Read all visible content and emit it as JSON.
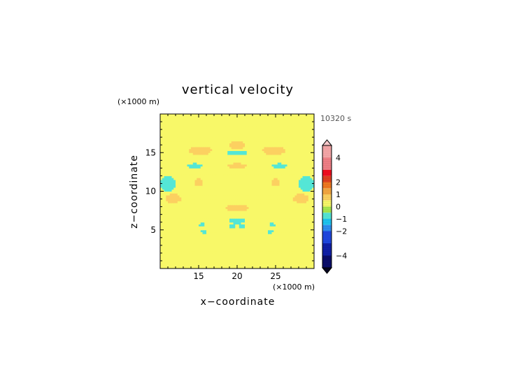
{
  "chart_data": {
    "type": "heatmap",
    "title": "vertical velocity",
    "xlabel": "x−coordinate",
    "ylabel": "z−coordinate",
    "x_unit": "(×1000 m)",
    "y_unit": "(×1000 m)",
    "time_label": "10320 s",
    "xlim": [
      10,
      30
    ],
    "ylim": [
      0,
      20
    ],
    "x_ticks": [
      15,
      20,
      25
    ],
    "y_ticks": [
      5,
      10,
      15
    ],
    "background_level": 0.25,
    "features": [
      {
        "x": 20.0,
        "z": 16.0,
        "rx": 1.0,
        "rz": 0.5,
        "value": 0.7
      },
      {
        "x": 20.0,
        "z": 15.0,
        "rx": 1.3,
        "rz": 0.35,
        "value": -0.8
      },
      {
        "x": 20.0,
        "z": 13.3,
        "rx": 1.2,
        "rz": 0.35,
        "value": 0.7
      },
      {
        "x": 15.2,
        "z": 15.3,
        "rx": 1.5,
        "rz": 0.55,
        "value": 0.8
      },
      {
        "x": 24.8,
        "z": 15.3,
        "rx": 1.5,
        "rz": 0.55,
        "value": 0.8
      },
      {
        "x": 14.5,
        "z": 13.3,
        "rx": 1.0,
        "rz": 0.35,
        "value": -0.8
      },
      {
        "x": 25.5,
        "z": 13.3,
        "rx": 1.0,
        "rz": 0.35,
        "value": -0.8
      },
      {
        "x": 15.0,
        "z": 11.2,
        "rx": 0.6,
        "rz": 0.45,
        "value": 0.7
      },
      {
        "x": 25.0,
        "z": 11.2,
        "rx": 0.6,
        "rz": 0.45,
        "value": 0.7
      },
      {
        "x": 11.0,
        "z": 11.0,
        "rx": 1.0,
        "rz": 1.0,
        "value": -0.8
      },
      {
        "x": 29.0,
        "z": 11.0,
        "rx": 1.0,
        "rz": 1.0,
        "value": -0.8
      },
      {
        "x": 11.7,
        "z": 9.1,
        "rx": 1.0,
        "rz": 0.6,
        "value": 0.8
      },
      {
        "x": 28.3,
        "z": 9.1,
        "rx": 1.0,
        "rz": 0.6,
        "value": 0.8
      },
      {
        "x": 20.0,
        "z": 7.9,
        "rx": 1.5,
        "rz": 0.45,
        "value": 0.7
      },
      {
        "x": 20.0,
        "z": 6.2,
        "rx": 1.0,
        "rz": 0.4,
        "value": -0.8
      },
      {
        "x": 19.4,
        "z": 5.5,
        "rx": 0.35,
        "rz": 0.3,
        "value": -0.8
      },
      {
        "x": 20.6,
        "z": 5.5,
        "rx": 0.35,
        "rz": 0.3,
        "value": -0.8
      },
      {
        "x": 15.4,
        "z": 5.7,
        "rx": 0.35,
        "rz": 0.25,
        "value": -0.8
      },
      {
        "x": 24.6,
        "z": 5.7,
        "rx": 0.35,
        "rz": 0.25,
        "value": -0.8
      },
      {
        "x": 15.7,
        "z": 4.8,
        "rx": 0.35,
        "rz": 0.25,
        "value": -0.8
      },
      {
        "x": 24.3,
        "z": 4.8,
        "rx": 0.35,
        "rz": 0.25,
        "value": -0.8
      }
    ],
    "colorbar": {
      "tick_labels": [
        "4",
        "2",
        "1",
        "0",
        "−1",
        "−2",
        "−4"
      ],
      "tick_values": [
        4,
        2,
        1,
        0,
        -1,
        -2,
        -4
      ],
      "levels": [
        {
          "from": 4,
          "to": 5,
          "color": "#f6a6a8"
        },
        {
          "from": 3,
          "to": 4,
          "color": "#f07f86"
        },
        {
          "from": 2.5,
          "to": 3,
          "color": "#f20f1f"
        },
        {
          "from": 2,
          "to": 2.5,
          "color": "#e04020"
        },
        {
          "from": 1.5,
          "to": 2,
          "color": "#f07820"
        },
        {
          "from": 1,
          "to": 1.5,
          "color": "#f3a640"
        },
        {
          "from": 0.5,
          "to": 1,
          "color": "#fcd060"
        },
        {
          "from": 0,
          "to": 0.5,
          "color": "#f8f868"
        },
        {
          "from": -0.5,
          "to": 0,
          "color": "#a6e84f"
        },
        {
          "from": -1,
          "to": -0.5,
          "color": "#54e6d6"
        },
        {
          "from": -1.5,
          "to": -1,
          "color": "#1ec4ef"
        },
        {
          "from": -2,
          "to": -1.5,
          "color": "#2e8ef0"
        },
        {
          "from": -3,
          "to": -2,
          "color": "#1f47e0"
        },
        {
          "from": -4,
          "to": -3,
          "color": "#1020a8"
        },
        {
          "from": -5,
          "to": -4,
          "color": "#0a0d6a"
        }
      ],
      "top_extension_color": "#f6c8ca",
      "bottom_extension_color": "#050520"
    }
  }
}
